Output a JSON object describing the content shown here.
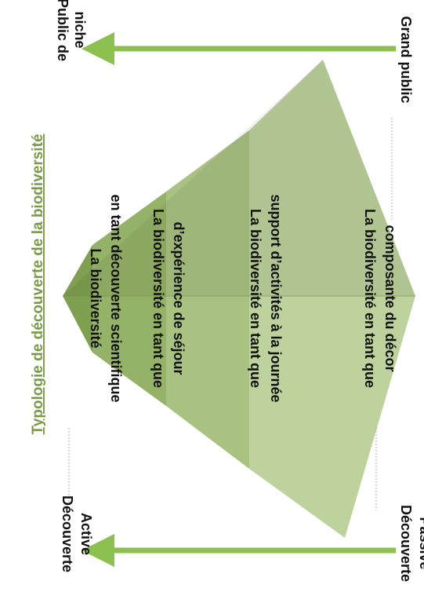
{
  "title": "Typologie de découverte de la biodiversité",
  "axis": {
    "top_left": [
      "Public de",
      "niche"
    ],
    "top_right": "Grand public",
    "bottom_left": [
      "Découverte",
      "Active"
    ],
    "bottom_right": [
      "Découverte",
      "Passive"
    ]
  },
  "levels": [
    {
      "lines": [
        "La biodiversité",
        "en tant découverte scientifique"
      ]
    },
    {
      "lines": [
        "La biodiversité en tant que",
        "d’expérience de séjour"
      ]
    },
    {
      "lines": [
        "La biodiversité en tant que",
        "support d’activités à la journée"
      ]
    },
    {
      "lines": [
        "La biodiversité en tant que",
        "composante du décor"
      ]
    }
  ],
  "colors": {
    "arrow": "#8cc152",
    "band1": "#7fa050",
    "band2": "#95b368",
    "band3": "#a9c282",
    "band4": "#bdd29c",
    "dark_half": "#000000",
    "title": "#7a9a4a"
  }
}
